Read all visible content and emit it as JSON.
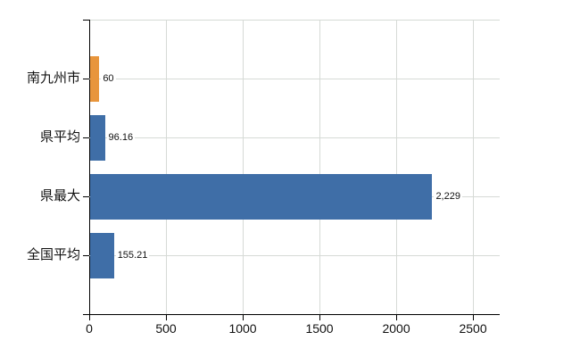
{
  "chart_data": {
    "type": "bar",
    "orientation": "horizontal",
    "title": "",
    "xlabel": "",
    "ylabel": "",
    "categories": [
      "南九州市",
      "県平均",
      "県最大",
      "全国平均"
    ],
    "values": [
      60,
      96.16,
      2229,
      155.21
    ],
    "value_labels": [
      "60",
      "96.16",
      "2,229",
      "155.21"
    ],
    "bar_colors": [
      "#e8953c",
      "#3f6ea7",
      "#3f6ea7",
      "#3f6ea7"
    ],
    "x_ticks": [
      0,
      500,
      1000,
      1500,
      2000,
      2500
    ],
    "x_tick_labels": [
      "0",
      "500",
      "1000",
      "1500",
      "2000",
      "2500"
    ],
    "xlim": [
      0,
      2674
    ],
    "grid": true,
    "legend": false,
    "colors": {
      "background": "#ffffff",
      "axis": "#000000",
      "gridline": "#d6dad6",
      "text": "#111111",
      "bar_blue": "#3f6ea7",
      "bar_orange": "#e8953c"
    }
  }
}
